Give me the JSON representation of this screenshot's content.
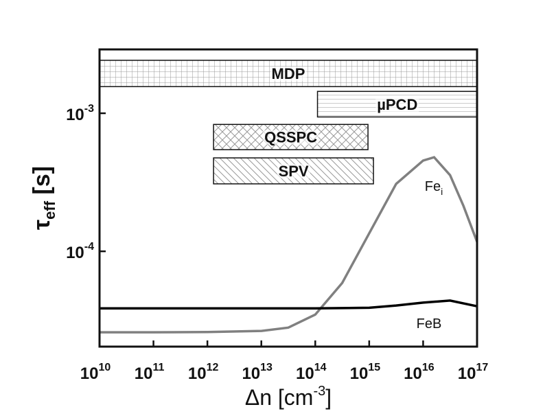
{
  "chart_data": {
    "type": "line",
    "x_scale": "log",
    "y_scale": "log",
    "xlim": [
      10000000000.0,
      1e+17
    ],
    "ylim": [
      2.04e-05,
      0.0029
    ],
    "xticks": [
      {
        "value": 10000000000.0,
        "label": "10",
        "exponent": "10"
      },
      {
        "value": 100000000000.0,
        "label": "10",
        "exponent": "11"
      },
      {
        "value": 1000000000000.0,
        "label": "10",
        "exponent": "12"
      },
      {
        "value": 10000000000000.0,
        "label": "10",
        "exponent": "13"
      },
      {
        "value": 100000000000000.0,
        "label": "10",
        "exponent": "14"
      },
      {
        "value": 1000000000000000.0,
        "label": "10",
        "exponent": "15"
      },
      {
        "value": 1e+16,
        "label": "10",
        "exponent": "16"
      },
      {
        "value": 1e+17,
        "label": "10",
        "exponent": "17"
      }
    ],
    "yticks": [
      {
        "value": 0.0001,
        "label": "10",
        "exponent": "-4"
      },
      {
        "value": 0.001,
        "label": "10",
        "exponent": "-3"
      }
    ],
    "x_label_parts": [
      {
        "text": "Δn [cm"
      },
      {
        "text": "-3",
        "sup": true
      },
      {
        "text": "]"
      }
    ],
    "y_label_parts": [
      {
        "text": "τ"
      },
      {
        "text": "eff",
        "sub": true
      },
      {
        "text": " [s]"
      }
    ],
    "bands": [
      {
        "label": "MDP",
        "x": [
          10000000000.0,
          1e+17
        ],
        "y": [
          0.00156,
          0.00242
        ],
        "pattern": "grid"
      },
      {
        "label": "µPCD",
        "x": [
          110000000000000.0,
          1e+17
        ],
        "y": [
          0.00094,
          0.00144
        ],
        "pattern": "horizontal"
      },
      {
        "label": "QSSPC",
        "x": [
          1300000000000.0,
          950000000000000.0
        ],
        "y": [
          0.000545,
          0.00083
        ],
        "pattern": "cross"
      },
      {
        "label": "SPV",
        "x": [
          1300000000000.0,
          1200000000000000.0
        ],
        "y": [
          0.000308,
          0.000475
        ],
        "pattern": "diagonal"
      }
    ],
    "series": [
      {
        "name": "Fe",
        "name_sub": "i",
        "color": "#808080",
        "x": [
          10000000000.0,
          100000000000.0,
          1000000000000.0,
          10000000000000.0,
          31600000000000.0,
          100000000000000.0,
          316000000000000.0,
          1000000000000000.0,
          3160000000000000.0,
          1e+16,
          1.6e+16,
          3.16e+16,
          5.6e+16,
          1e+17
        ],
        "values": [
          2.59e-05,
          2.59e-05,
          2.6e-05,
          2.65e-05,
          2.8e-05,
          3.48e-05,
          5.9e-05,
          0.000135,
          0.000308,
          0.000454,
          0.00048,
          0.000356,
          0.000213,
          0.000117
        ]
      },
      {
        "name": "FeB",
        "color": "#000000",
        "x": [
          10000000000.0,
          1000000000000.0,
          100000000000000.0,
          1000000000000000.0,
          3160000000000000.0,
          1e+16,
          3.16e+16,
          1e+17
        ],
        "values": [
          3.86e-05,
          3.86e-05,
          3.86e-05,
          3.9e-05,
          4.05e-05,
          4.25e-05,
          4.4e-05,
          4e-05
        ]
      }
    ]
  }
}
